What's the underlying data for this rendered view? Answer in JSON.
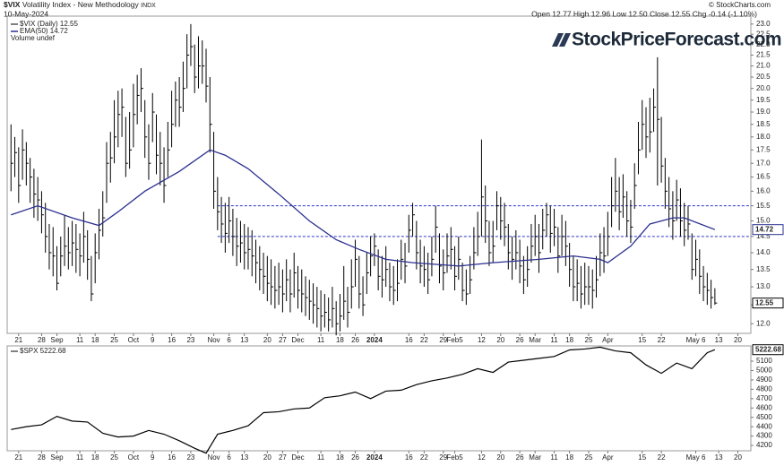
{
  "chart_data": [
    {
      "type": "ohlc",
      "symbol": "$VIX",
      "title": "Volatility Index - New Methodology",
      "exchange": "INDX",
      "date": "10-May-2024",
      "quote": "Open 12.77  High 12.96  Low 12.50  Close 12.55  Chg -0.14 (-1.10%)",
      "credit": "© StockCharts.com",
      "logo": "StockPriceForecast.com",
      "legend": [
        "$VIX (Daily) 12.55",
        "EMA(50) 14.72",
        "Volume undef"
      ],
      "color": "#000000",
      "last_label": "12.55",
      "high": [
        18.5,
        18.0,
        17.6,
        18.3,
        17.8,
        17.2,
        16.8,
        16.5,
        16.0,
        15.6,
        14.9,
        14.8,
        14.2,
        14.5,
        15.2,
        14.8,
        15.0,
        14.9,
        14.6,
        15.3,
        14.7,
        13.9,
        14.6,
        15.4,
        16.0,
        17.8,
        18.2,
        19.5,
        19.9,
        20.0,
        18.8,
        19.0,
        20.2,
        20.6,
        20.9,
        19.5,
        18.5,
        19.8,
        18.9,
        18.2,
        17.6,
        18.6,
        19.9,
        20.3,
        20.5,
        21.2,
        22.5,
        23.0,
        22.0,
        22.4,
        22.2,
        21.8,
        20.5,
        18.2,
        16.5,
        15.8,
        15.6,
        15.8,
        15.4,
        15.1,
        15.0,
        14.9,
        14.8,
        14.7,
        14.4,
        14.2,
        14.0,
        13.9,
        13.8,
        13.6,
        13.7,
        13.5,
        13.8,
        13.5,
        14.0,
        13.6,
        13.5,
        13.3,
        13.2,
        13.1,
        13.0,
        12.9,
        12.8,
        12.7,
        13.0,
        12.6,
        12.8,
        13.6,
        13.0,
        13.8,
        14.4,
        13.9,
        13.3,
        14.0,
        14.5,
        14.6,
        14.1,
        13.9,
        14.2,
        13.7,
        13.6,
        13.8,
        14.4,
        14.3,
        15.2,
        15.6,
        15.0,
        14.4,
        14.2,
        14.0,
        14.5,
        15.5,
        14.6,
        14.1,
        14.6,
        14.8,
        14.2,
        14.5,
        13.7,
        13.5,
        13.9,
        14.8,
        15.3,
        17.9,
        16.2,
        15.0,
        15.0,
        16.0,
        15.8,
        15.6,
        14.9,
        14.5,
        14.7,
        14.4,
        13.9,
        14.2,
        14.9,
        15.2,
        14.9,
        15.4,
        15.6,
        15.5,
        15.4,
        14.8,
        15.2,
        15.0,
        14.3,
        13.9,
        13.8,
        13.6,
        13.7,
        13.6,
        13.5,
        13.9,
        14.6,
        14.8,
        15.3,
        16.5,
        17.2,
        16.5,
        16.6,
        16.0,
        15.7,
        17.0,
        18.6,
        19.5,
        19.2,
        19.6,
        20.0,
        21.4,
        18.8,
        17.2,
        16.5,
        16.0,
        16.4,
        16.1,
        15.6,
        15.5,
        14.6,
        14.4,
        14.1,
        13.6,
        13.4,
        13.2,
        12.96
      ],
      "low": [
        16.0,
        16.5,
        15.6,
        16.4,
        16.2,
        15.6,
        15.1,
        15.0,
        14.6,
        14.0,
        13.5,
        13.3,
        12.9,
        13.3,
        13.6,
        13.5,
        13.6,
        13.4,
        13.3,
        13.7,
        13.2,
        12.6,
        13.1,
        13.8,
        14.5,
        15.6,
        16.3,
        17.0,
        17.6,
        18.0,
        16.5,
        16.8,
        17.6,
        18.5,
        19.0,
        17.2,
        16.4,
        17.8,
        16.6,
        16.2,
        15.6,
        16.5,
        17.6,
        18.4,
        18.4,
        19.0,
        20.0,
        21.0,
        19.8,
        20.0,
        20.2,
        19.4,
        17.4,
        15.4,
        14.7,
        14.3,
        14.0,
        14.3,
        13.9,
        13.6,
        13.7,
        13.5,
        13.5,
        13.3,
        13.1,
        12.9,
        12.8,
        12.6,
        12.5,
        12.4,
        12.5,
        12.3,
        12.6,
        12.3,
        12.7,
        12.4,
        12.3,
        12.2,
        12.1,
        12.0,
        11.9,
        11.8,
        11.9,
        11.8,
        11.9,
        11.7,
        11.8,
        12.1,
        11.9,
        12.4,
        13.0,
        12.4,
        12.2,
        12.8,
        13.3,
        13.6,
        12.9,
        12.7,
        13.0,
        12.6,
        12.5,
        12.6,
        13.2,
        13.1,
        14.0,
        14.5,
        13.5,
        13.1,
        13.0,
        12.8,
        13.3,
        14.0,
        13.1,
        12.9,
        13.4,
        13.5,
        12.9,
        13.2,
        12.6,
        12.5,
        12.8,
        13.5,
        13.9,
        14.5,
        14.3,
        13.6,
        13.7,
        14.7,
        14.4,
        14.2,
        13.5,
        13.2,
        13.5,
        13.1,
        12.8,
        13.0,
        13.7,
        13.9,
        13.4,
        14.1,
        14.5,
        14.0,
        14.2,
        13.4,
        13.9,
        13.6,
        13.0,
        12.6,
        12.6,
        12.4,
        12.5,
        12.5,
        12.4,
        12.7,
        13.3,
        13.4,
        13.9,
        14.8,
        15.3,
        14.7,
        15.1,
        14.5,
        14.3,
        15.4,
        16.6,
        17.5,
        17.2,
        17.4,
        18.2,
        16.2,
        16.3,
        15.4,
        14.8,
        14.4,
        15.0,
        14.5,
        14.2,
        14.4,
        13.2,
        13.3,
        12.8,
        12.6,
        12.5,
        12.4,
        12.5
      ],
      "close": [
        17.0,
        17.4,
        16.2,
        17.5,
        17.0,
        16.5,
        15.9,
        15.7,
        15.2,
        14.5,
        14.0,
        13.9,
        13.1,
        13.9,
        14.2,
        14.0,
        14.3,
        14.1,
        13.9,
        14.5,
        13.8,
        12.8,
        14.0,
        14.7,
        15.1,
        17.0,
        17.2,
        18.0,
        18.9,
        19.2,
        17.0,
        17.5,
        18.9,
        19.7,
        20.0,
        18.0,
        17.0,
        19.0,
        17.3,
        17.0,
        16.2,
        17.5,
        18.5,
        19.5,
        19.2,
        20.0,
        21.5,
        21.9,
        20.5,
        21.0,
        21.0,
        20.1,
        18.5,
        16.0,
        15.3,
        14.9,
        14.6,
        15.0,
        14.5,
        14.2,
        14.3,
        14.0,
        14.1,
        13.9,
        13.7,
        13.5,
        13.3,
        13.1,
        13.0,
        12.9,
        13.0,
        12.8,
        13.2,
        12.8,
        13.4,
        12.9,
        12.8,
        12.7,
        12.6,
        12.5,
        12.4,
        12.2,
        12.3,
        12.1,
        12.4,
        12.0,
        12.2,
        12.6,
        12.3,
        13.0,
        13.8,
        12.8,
        12.5,
        13.4,
        13.9,
        14.2,
        13.3,
        13.2,
        13.5,
        13.0,
        12.9,
        13.1,
        13.8,
        13.6,
        14.7,
        15.2,
        14.0,
        13.6,
        13.5,
        13.2,
        13.8,
        14.8,
        13.6,
        13.4,
        13.9,
        14.1,
        13.3,
        13.8,
        12.9,
        12.8,
        13.2,
        14.0,
        14.5,
        15.8,
        15.0,
        14.0,
        14.2,
        15.5,
        15.0,
        14.8,
        14.0,
        13.8,
        14.0,
        13.6,
        13.2,
        13.5,
        14.2,
        14.5,
        14.0,
        14.7,
        15.2,
        14.6,
        14.8,
        13.9,
        14.5,
        14.2,
        13.5,
        13.0,
        13.1,
        12.8,
        13.0,
        13.0,
        12.9,
        13.2,
        14.0,
        13.9,
        14.5,
        15.5,
        16.0,
        15.3,
        15.8,
        15.0,
        14.8,
        16.2,
        17.5,
        18.5,
        18.0,
        18.2,
        19.2,
        18.7,
        16.9,
        16.0,
        15.4,
        15.0,
        15.7,
        15.0,
        14.7,
        14.9,
        13.5,
        13.8,
        13.3,
        13.0,
        12.9,
        12.7,
        12.55
      ],
      "ema": {
        "name": "EMA(50)",
        "color": "#2b2f8f",
        "last_label": "14.72",
        "x": [
          0,
          7,
          16,
          23,
          28,
          35,
          44,
          52,
          56,
          62,
          70,
          78,
          85,
          91,
          98,
          105,
          117,
          126,
          138,
          147,
          154,
          156,
          162,
          167,
          173,
          176,
          184
        ],
        "values": [
          15.2,
          15.5,
          15.1,
          14.85,
          15.3,
          16.0,
          16.7,
          17.5,
          17.3,
          16.8,
          15.9,
          15.0,
          14.4,
          14.1,
          13.8,
          13.7,
          13.6,
          13.7,
          13.8,
          13.9,
          13.8,
          13.7,
          14.2,
          14.9,
          15.1,
          15.1,
          14.72
        ]
      },
      "hlines": [
        {
          "y": 15.5,
          "from_x": 54
        },
        {
          "y": 14.5,
          "from_x": 54
        }
      ],
      "hline_color": "#2f36c8",
      "log_scale": true,
      "xlim": [
        -1,
        193.4
      ],
      "ylim": [
        11.75,
        23.4
      ],
      "yticks": [
        {
          "value": 12,
          "label": "12.0"
        },
        {
          "value": 12.5,
          "label": "12.5"
        },
        {
          "value": 13,
          "label": "13.0"
        },
        {
          "value": 13.5,
          "label": "13.5"
        },
        {
          "value": 14,
          "label": "14.0"
        },
        {
          "value": 14.5,
          "label": "14.5"
        },
        {
          "value": 15,
          "label": "15.0"
        },
        {
          "value": 15.5,
          "label": "15.5"
        },
        {
          "value": 16,
          "label": "16.0"
        },
        {
          "value": 16.5,
          "label": "16.5"
        },
        {
          "value": 17,
          "label": "17.0"
        },
        {
          "value": 17.5,
          "label": "17.5"
        },
        {
          "value": 18,
          "label": "18.0"
        },
        {
          "value": 18.5,
          "label": "18.5"
        },
        {
          "value": 19,
          "label": "19.0"
        },
        {
          "value": 19.5,
          "label": "19.5"
        },
        {
          "value": 20,
          "label": "20.0"
        },
        {
          "value": 20.5,
          "label": "20.5"
        },
        {
          "value": 21,
          "label": "21.0"
        },
        {
          "value": 21.5,
          "label": "21.5"
        },
        {
          "value": 22,
          "label": "22.0"
        },
        {
          "value": 22.5,
          "label": "22.5"
        },
        {
          "value": 23,
          "label": "23.0"
        }
      ],
      "xticks": [
        {
          "value": 2,
          "label": "21"
        },
        {
          "value": 8,
          "label": "28"
        },
        {
          "value": 12,
          "label": "Sep"
        },
        {
          "value": 18,
          "label": "11"
        },
        {
          "value": 22,
          "label": "18"
        },
        {
          "value": 27,
          "label": "25"
        },
        {
          "value": 32,
          "label": "Oct"
        },
        {
          "value": 37,
          "label": "9"
        },
        {
          "value": 42,
          "label": "16"
        },
        {
          "value": 47,
          "label": "23"
        },
        {
          "value": 53,
          "label": "Nov"
        },
        {
          "value": 57,
          "label": "6"
        },
        {
          "value": 61,
          "label": "13"
        },
        {
          "value": 67,
          "label": "20"
        },
        {
          "value": 71,
          "label": "27"
        },
        {
          "value": 75,
          "label": "Dec"
        },
        {
          "value": 81,
          "label": "11"
        },
        {
          "value": 86,
          "label": "18"
        },
        {
          "value": 90,
          "label": "26"
        },
        {
          "value": 95,
          "label": "2024"
        },
        {
          "value": 104,
          "label": "16"
        },
        {
          "value": 108,
          "label": "22"
        },
        {
          "value": 113,
          "label": "29"
        },
        {
          "value": 116,
          "label": "Feb5"
        },
        {
          "value": 123,
          "label": "12"
        },
        {
          "value": 128,
          "label": "20"
        },
        {
          "value": 133,
          "label": "26"
        },
        {
          "value": 137,
          "label": "Mar"
        },
        {
          "value": 142,
          "label": "11"
        },
        {
          "value": 146,
          "label": "18"
        },
        {
          "value": 151,
          "label": "25"
        },
        {
          "value": 156,
          "label": "Apr"
        },
        {
          "value": 165,
          "label": "15"
        },
        {
          "value": 170,
          "label": "22"
        },
        {
          "value": 179,
          "label": "May 6"
        },
        {
          "value": 185,
          "label": "13"
        },
        {
          "value": 190,
          "label": "20"
        }
      ]
    },
    {
      "type": "line",
      "legend": "$SPX 5222.68",
      "last_label": "5222.68",
      "color": "#000000",
      "x": [
        0,
        4,
        8,
        12,
        16,
        20,
        24,
        28,
        32,
        36,
        40,
        44,
        48,
        51,
        54,
        58,
        62,
        66,
        70,
        74,
        78,
        82,
        86,
        90,
        94,
        98,
        102,
        106,
        110,
        114,
        118,
        122,
        126,
        130,
        134,
        138,
        142,
        146,
        150,
        154,
        158,
        162,
        166,
        170,
        174,
        178,
        182,
        184
      ],
      "values": [
        4370,
        4400,
        4420,
        4510,
        4460,
        4450,
        4330,
        4290,
        4300,
        4360,
        4320,
        4250,
        4170,
        4117,
        4320,
        4360,
        4410,
        4550,
        4560,
        4590,
        4600,
        4710,
        4730,
        4770,
        4700,
        4780,
        4790,
        4850,
        4890,
        4920,
        4960,
        5020,
        4980,
        5090,
        5110,
        5130,
        5150,
        5220,
        5230,
        5250,
        5210,
        5190,
        5060,
        4970,
        5080,
        5020,
        5190,
        5222.68
      ],
      "xlim": [
        -1,
        193.4
      ],
      "ylim": [
        4143,
        5263
      ],
      "yticks": [
        4200,
        4300,
        4400,
        4500,
        4600,
        4700,
        4800,
        4900,
        5000,
        5100
      ]
    }
  ]
}
